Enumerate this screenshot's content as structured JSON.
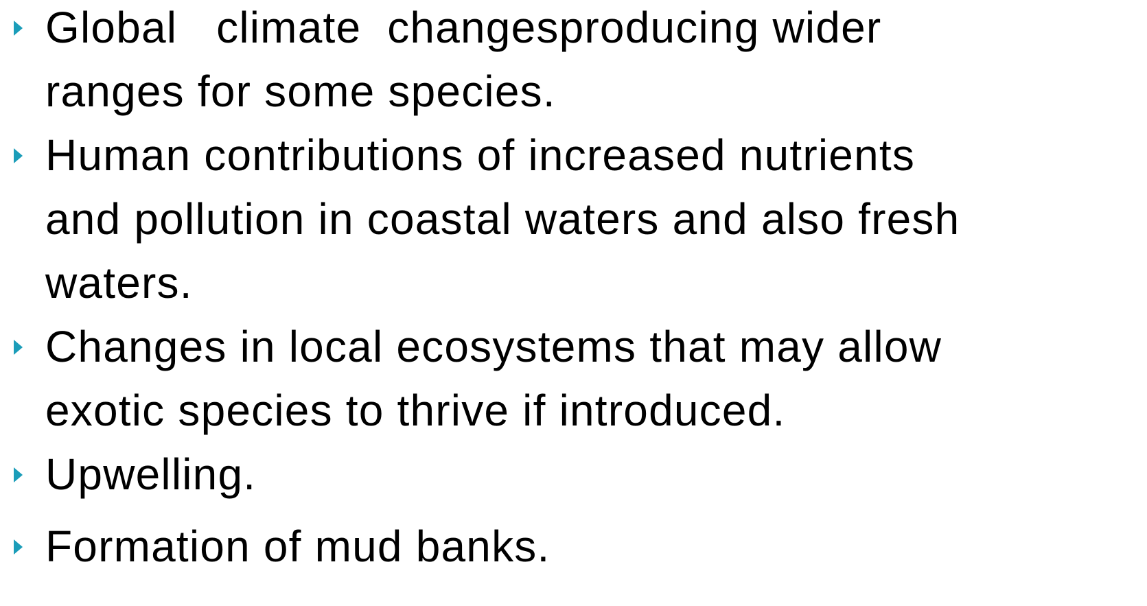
{
  "bullets": [
    {
      "lines": [
        "Global   climate  changesproducing wider",
        "ranges for some species."
      ]
    },
    {
      "lines": [
        "Human contributions of increased nutrients",
        "and pollution in coastal waters and also fresh",
        "waters."
      ]
    },
    {
      "lines": [
        "Changes in local ecosystems that may allow",
        "exotic species to thrive if introduced."
      ]
    },
    {
      "lines": [
        "Upwelling."
      ]
    },
    {
      "lines": [
        "Formation of mud banks."
      ]
    }
  ]
}
